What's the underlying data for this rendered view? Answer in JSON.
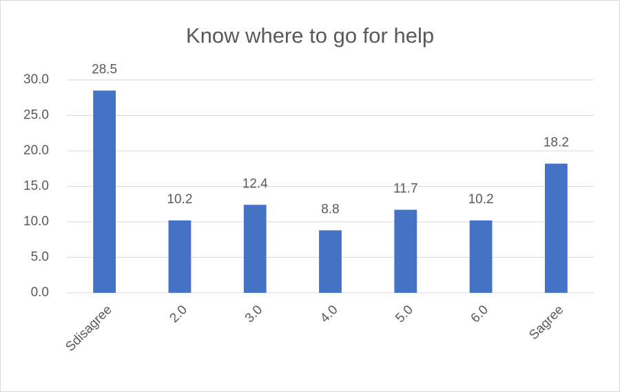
{
  "chart_data": {
    "type": "bar",
    "title": "Know where to go for help",
    "categories": [
      "Sdisagree",
      "2.0",
      "3.0",
      "4.0",
      "5.0",
      "6.0",
      "Sagree"
    ],
    "values": [
      28.5,
      10.2,
      12.4,
      8.8,
      11.7,
      10.2,
      18.2
    ],
    "color": "#4472c4",
    "ylim": [
      0,
      30
    ],
    "yticks": [
      {
        "value": 0,
        "label": "0.0"
      },
      {
        "value": 5,
        "label": "5.0"
      },
      {
        "value": 10,
        "label": "10.0"
      },
      {
        "value": 15,
        "label": "15.0"
      },
      {
        "value": 20,
        "label": "20.0"
      },
      {
        "value": 25,
        "label": "25.0"
      },
      {
        "value": 30,
        "label": "30.0"
      }
    ],
    "grid": true
  }
}
